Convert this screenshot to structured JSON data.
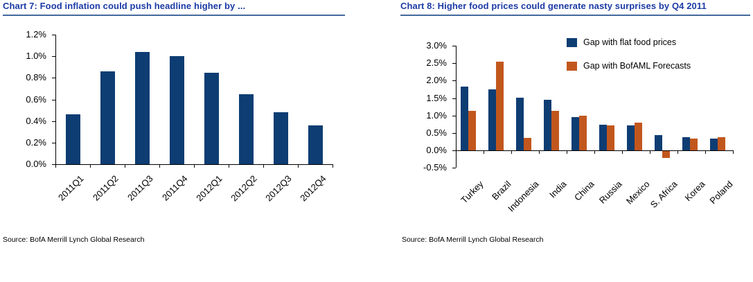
{
  "page": {
    "background": "#ffffff"
  },
  "colors": {
    "title_blue": "#1C3AA6",
    "underline_blue": "#44699E",
    "bar_navy": "#0E3D73",
    "bar_orange": "#C2571E",
    "axis": "#000000"
  },
  "chart_data": [
    {
      "type": "bar",
      "title": "Chart 7: Food inflation could push headline higher by ...",
      "source": "Source: BofA Merrill Lynch Global Research",
      "categories": [
        "2011Q1",
        "2011Q2",
        "2011Q3",
        "2011Q4",
        "2012Q1",
        "2012Q2",
        "2012Q3",
        "2012Q4"
      ],
      "values": [
        0.46,
        0.86,
        1.04,
        1.0,
        0.85,
        0.65,
        0.48,
        0.36
      ],
      "unit": "%",
      "bar_color": "#0E3D73",
      "xlabel": "",
      "ylabel": "",
      "ylim": [
        0,
        1.2
      ],
      "ytick_step": 0.2,
      "ytick_labels": [
        "0.0%",
        "0.2%",
        "0.4%",
        "0.6%",
        "0.8%",
        "1.0%",
        "1.2%"
      ],
      "grid": false
    },
    {
      "type": "bar",
      "title": "Chart 8: Higher food prices could generate nasty surprises by Q4 2011",
      "source": "Source: BofA Merrill Lynch Global Research",
      "categories": [
        "Turkey",
        "Brazil",
        "Indonesia",
        "India",
        "China",
        "Russia",
        "Mexico",
        "S. Africa",
        "Korea",
        "Poland"
      ],
      "series": [
        {
          "name": "Gap with flat food prices",
          "color": "#0E3D73",
          "values": [
            1.82,
            1.74,
            1.52,
            1.46,
            0.96,
            0.73,
            0.71,
            0.43,
            0.38,
            0.33
          ]
        },
        {
          "name": "Gap with BofAML Forecasts",
          "color": "#C2571E",
          "values": [
            1.13,
            2.55,
            0.36,
            1.13,
            1.0,
            0.71,
            0.79,
            -0.2,
            0.33,
            0.37
          ]
        }
      ],
      "unit": "%",
      "xlabel": "",
      "ylabel": "",
      "ylim": [
        -0.5,
        3.0
      ],
      "ytick_step": 0.5,
      "ytick_labels": [
        "-0.5%",
        "0.0%",
        "0.5%",
        "1.0%",
        "1.5%",
        "2.0%",
        "2.5%",
        "3.0%"
      ],
      "legend_position": "top-right",
      "grid": false
    }
  ]
}
